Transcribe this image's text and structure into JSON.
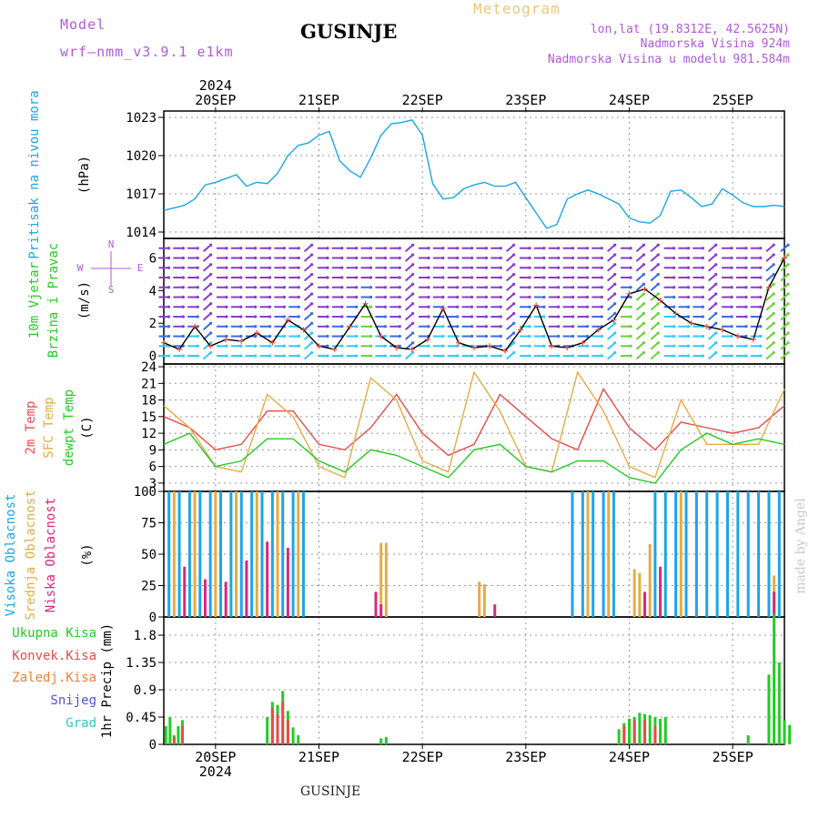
{
  "header": {
    "model_label": "Model",
    "model_name": "wrf–nmm_v3.9.1  e1km",
    "station": "GUSINJE",
    "meteogram": "Meteogram",
    "coords": "lon,lat (19.8312E, 42.5625N)",
    "elevation": "Nadmorska Visina 924m",
    "model_elevation": "Nadmorska Visina u modelu 981.584m"
  },
  "footer": {
    "station": "GUSINJE",
    "made_by": "made by Angel"
  },
  "chart_data": [
    {
      "type": "line",
      "panel": "pressure",
      "ylabel": "Pritisak na nivou mora",
      "unit": "(hPa)",
      "ylim": [
        1013.5,
        1023.5
      ],
      "yticks": [
        1014,
        1017,
        1020,
        1023
      ],
      "x_start": "2024-09-19 12:00",
      "x_end": "2024-09-25 12:00",
      "x_ticks": [
        "20SEP",
        "21SEP",
        "22SEP",
        "23SEP",
        "24SEP",
        "25SEP"
      ],
      "year_label": "2024",
      "grid": true,
      "series": [
        {
          "color": "#1ba6e6",
          "x": [
            0,
            0.1,
            0.2,
            0.3,
            0.4,
            0.5,
            0.6,
            0.7,
            0.8,
            0.9,
            1.0,
            1.1,
            1.2,
            1.3,
            1.4,
            1.5,
            1.6,
            1.7,
            1.8,
            1.9,
            2.0,
            2.1,
            2.2,
            2.3,
            2.4,
            2.5,
            2.6,
            2.7,
            2.8,
            2.9,
            3.0,
            3.1,
            3.2,
            3.3,
            3.4,
            3.5,
            3.6,
            3.7,
            3.8,
            3.9,
            4.0,
            4.1,
            4.2,
            4.3,
            4.4,
            4.5,
            4.6,
            4.7,
            4.8,
            4.9,
            5.0,
            5.1,
            5.2,
            5.3,
            5.4,
            5.5,
            5.6,
            5.7,
            5.8,
            5.9,
            6.0
          ],
          "values": [
            1015.7,
            1015.9,
            1016.1,
            1016.6,
            1017.7,
            1017.9,
            1018.2,
            1018.5,
            1017.6,
            1017.9,
            1017.8,
            1018.6,
            1020.0,
            1020.8,
            1021.0,
            1021.6,
            1021.9,
            1019.6,
            1018.8,
            1018.3,
            1019.8,
            1021.6,
            1022.5,
            1022.6,
            1022.8,
            1021.6,
            1017.8,
            1016.6,
            1016.7,
            1017.4,
            1017.7,
            1017.9,
            1017.6,
            1017.6,
            1017.9,
            1016.7,
            1015.5,
            1014.3,
            1014.6,
            1016.6,
            1017.0,
            1017.3,
            1017.0,
            1016.6,
            1016.2,
            1015.1,
            1014.8,
            1014.7,
            1015.3,
            1017.2,
            1017.3,
            1016.7,
            1016.0,
            1016.2,
            1017.4,
            1016.9,
            1016.3,
            1016.0,
            1016.0,
            1016.1,
            1016.0
          ]
        }
      ]
    },
    {
      "type": "line",
      "panel": "wind",
      "ylabel": "10m Vjetar",
      "ylabel2": "Brzina i Pravac",
      "unit": "(m/s)",
      "compass": {
        "n": "N",
        "s": "S",
        "w": "W",
        "e": "E"
      },
      "ylim": [
        -0.5,
        7.2
      ],
      "yticks": [
        0,
        2,
        4,
        6
      ],
      "grid": false,
      "series": [
        {
          "name": "speed",
          "color": "#000000",
          "x": [
            0,
            0.15,
            0.3,
            0.45,
            0.6,
            0.75,
            0.9,
            1.05,
            1.2,
            1.35,
            1.5,
            1.65,
            1.8,
            1.95,
            2.1,
            2.25,
            2.4,
            2.55,
            2.7,
            2.85,
            3.0,
            3.15,
            3.3,
            3.45,
            3.6,
            3.75,
            3.9,
            4.05,
            4.2,
            4.35,
            4.5,
            4.65,
            4.8,
            4.95,
            5.1,
            5.25,
            5.4,
            5.55,
            5.7,
            5.85,
            6.0
          ],
          "values": [
            0.8,
            0.4,
            1.8,
            0.6,
            1.0,
            0.9,
            1.4,
            0.8,
            2.2,
            1.6,
            0.6,
            0.4,
            1.8,
            3.2,
            1.2,
            0.5,
            0.4,
            1.0,
            2.9,
            0.8,
            0.5,
            0.6,
            0.3,
            1.6,
            3.1,
            0.6,
            0.5,
            0.8,
            1.6,
            2.2,
            3.8,
            4.1,
            3.4,
            2.6,
            2.0,
            1.8,
            1.6,
            1.2,
            1.0,
            4.2,
            6.0
          ]
        }
      ]
    },
    {
      "type": "line",
      "panel": "temperature",
      "ylabels": [
        "2m Temp",
        "SFC Temp",
        "dewpt Temp"
      ],
      "unit": "(C)",
      "ylim": [
        1.5,
        24.5
      ],
      "yticks": [
        3,
        6,
        9,
        12,
        15,
        18,
        21,
        24
      ],
      "grid": true,
      "series": [
        {
          "name": "2m Temp",
          "color": "#e84b4b",
          "x": [
            0,
            0.25,
            0.5,
            0.75,
            1.0,
            1.25,
            1.5,
            1.75,
            2.0,
            2.25,
            2.5,
            2.75,
            3.0,
            3.25,
            3.5,
            3.75,
            4.0,
            4.25,
            4.5,
            4.75,
            5.0,
            5.25,
            5.5,
            5.75,
            6.0
          ],
          "values": [
            15,
            13,
            9,
            10,
            16,
            16,
            10,
            9,
            13,
            19,
            12,
            8,
            10,
            19,
            15,
            11,
            9,
            20,
            13,
            9,
            14,
            13,
            12,
            13,
            17
          ]
        },
        {
          "name": "SFC Temp",
          "color": "#e4ac45",
          "x": [
            0,
            0.25,
            0.5,
            0.75,
            1.0,
            1.25,
            1.5,
            1.75,
            2.0,
            2.25,
            2.5,
            2.75,
            3.0,
            3.25,
            3.5,
            3.75,
            4.0,
            4.25,
            4.5,
            4.75,
            5.0,
            5.25,
            5.5,
            5.75,
            6.0
          ],
          "values": [
            17,
            13,
            6,
            5,
            19,
            15,
            6,
            4,
            22,
            18,
            7,
            5,
            23,
            16,
            6,
            5,
            23,
            16,
            6,
            4,
            18,
            10,
            10,
            10,
            20
          ]
        },
        {
          "name": "dewpt Temp",
          "color": "#22cc22",
          "x": [
            0,
            0.25,
            0.5,
            0.75,
            1.0,
            1.25,
            1.5,
            1.75,
            2.0,
            2.25,
            2.5,
            2.75,
            3.0,
            3.25,
            3.5,
            3.75,
            4.0,
            4.25,
            4.5,
            4.75,
            5.0,
            5.25,
            5.5,
            5.75,
            6.0
          ],
          "values": [
            10,
            12,
            6,
            7,
            11,
            11,
            7,
            5,
            9,
            8,
            6,
            4,
            9,
            10,
            6,
            5,
            7,
            7,
            4,
            3,
            9,
            12,
            10,
            11,
            10
          ]
        }
      ]
    },
    {
      "type": "bar",
      "panel": "clouds",
      "ylabels": [
        "Visoka Oblacnost",
        "Srednja Oblacnost",
        "Niska Oblacnost"
      ],
      "unit": "(%)",
      "ylim": [
        0,
        100
      ],
      "yticks": [
        0,
        25,
        50,
        75,
        100
      ],
      "grid": true,
      "series": [
        {
          "name": "Visoka Oblacnost",
          "color": "#1ba6e6",
          "x": [
            0.05,
            0.15,
            0.25,
            0.35,
            0.45,
            0.55,
            0.65,
            0.75,
            0.85,
            0.95,
            1.05,
            1.15,
            1.25,
            1.35,
            3.95,
            4.05,
            4.15,
            4.25,
            4.35,
            4.75,
            4.85,
            4.95,
            5.05,
            5.15,
            5.25,
            5.35,
            5.45,
            5.55,
            5.65,
            5.75,
            5.85,
            5.95
          ],
          "values": [
            100,
            100,
            100,
            100,
            100,
            100,
            100,
            100,
            100,
            100,
            100,
            100,
            100,
            100,
            100,
            100,
            100,
            100,
            100,
            100,
            100,
            100,
            100,
            100,
            100,
            100,
            100,
            100,
            100,
            100,
            100,
            100
          ]
        },
        {
          "name": "Srednja Oblacnost",
          "color": "#e4ac45",
          "x": [
            0.1,
            0.3,
            0.5,
            0.7,
            0.9,
            1.1,
            1.3,
            2.1,
            2.15,
            3.05,
            3.1,
            4.1,
            4.3,
            4.55,
            4.6,
            4.7,
            5.0,
            5.9
          ],
          "values": [
            100,
            100,
            100,
            100,
            100,
            100,
            100,
            59,
            59,
            28,
            26,
            100,
            100,
            38,
            35,
            58,
            100,
            33
          ]
        },
        {
          "name": "Niska Oblacnost",
          "color": "#d9287a",
          "x": [
            0.2,
            0.4,
            0.6,
            0.8,
            1.0,
            1.2,
            2.05,
            2.1,
            3.2,
            4.65,
            4.8,
            5.9
          ],
          "values": [
            40,
            30,
            28,
            45,
            60,
            55,
            20,
            10,
            10,
            20,
            40,
            20
          ]
        }
      ]
    },
    {
      "type": "bar",
      "panel": "precipitation",
      "ylabels": [
        "Ukupna Kisa",
        "Konvek.Kisa",
        "Zaledj.Kisa",
        "Snijeg",
        "Grad"
      ],
      "label_colors": [
        "#22cc22",
        "#e84b4b",
        "#f08232",
        "#5050e0",
        "#2ec8c8"
      ],
      "unit": "1hr Precip (mm)",
      "ylim": [
        0,
        2.1
      ],
      "yticks": [
        0,
        0.45,
        0.9,
        1.35,
        1.8
      ],
      "grid": true,
      "series": [
        {
          "name": "Ukupna Kisa",
          "color": "#22cc22",
          "x": [
            0.02,
            0.06,
            0.1,
            0.14,
            0.18,
            1.0,
            1.05,
            1.1,
            1.15,
            1.2,
            1.25,
            1.3,
            2.1,
            2.15,
            4.4,
            4.45,
            4.5,
            4.55,
            4.6,
            4.65,
            4.7,
            4.75,
            4.8,
            4.85,
            5.65,
            5.85,
            5.9,
            5.95,
            6.0,
            6.05
          ],
          "values": [
            0.3,
            0.45,
            0.15,
            0.3,
            0.4,
            0.45,
            0.7,
            0.65,
            0.88,
            0.55,
            0.28,
            0.15,
            0.1,
            0.12,
            0.25,
            0.35,
            0.42,
            0.45,
            0.52,
            0.5,
            0.48,
            0.45,
            0.42,
            0.45,
            0.15,
            1.15,
            2.15,
            1.35,
            0.4,
            0.32
          ]
        },
        {
          "name": "Konvek.Kisa",
          "color": "#e84b4b",
          "x": [
            0.1,
            0.18,
            1.05,
            1.1,
            1.15,
            1.2,
            4.45,
            4.55,
            4.65,
            4.75
          ],
          "values": [
            0.12,
            0.3,
            0.6,
            0.5,
            0.7,
            0.4,
            0.3,
            0.4,
            0.4,
            0.3
          ]
        }
      ]
    }
  ]
}
